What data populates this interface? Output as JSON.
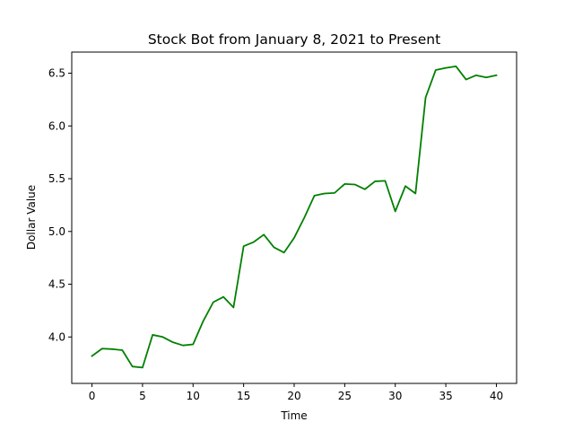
{
  "chart_data": {
    "type": "line",
    "title": "Stock Bot from January 8, 2021 to Present",
    "xlabel": "Time",
    "ylabel": "Dollar Value",
    "xlim": [
      -2,
      42
    ],
    "ylim": [
      3.56,
      6.7
    ],
    "xticks": [
      0,
      5,
      10,
      15,
      20,
      25,
      30,
      35,
      40
    ],
    "yticks": [
      4.0,
      4.5,
      5.0,
      5.5,
      6.0,
      6.5
    ],
    "ytick_labels": [
      "4.0",
      "4.5",
      "5.0",
      "5.5",
      "6.0",
      "6.5"
    ],
    "grid": false,
    "series": [
      {
        "color": "#008000",
        "x": [
          0,
          1,
          2,
          3,
          4,
          5,
          6,
          7,
          8,
          9,
          10,
          11,
          12,
          13,
          14,
          15,
          16,
          17,
          18,
          19,
          20,
          21,
          22,
          23,
          24,
          25,
          26,
          27,
          28,
          29,
          30,
          31,
          32,
          33,
          34,
          35,
          36,
          37,
          38,
          39,
          40
        ],
        "y": [
          3.82,
          3.89,
          3.885,
          3.875,
          3.72,
          3.71,
          4.02,
          4.0,
          3.95,
          3.92,
          3.93,
          4.15,
          4.33,
          4.38,
          4.28,
          4.86,
          4.9,
          4.97,
          4.85,
          4.8,
          4.94,
          5.13,
          5.34,
          5.36,
          5.365,
          5.45,
          5.445,
          5.4,
          5.475,
          5.48,
          5.19,
          5.43,
          5.36,
          6.27,
          6.53,
          6.55,
          6.565,
          6.44,
          6.48,
          6.46,
          6.48
        ]
      }
    ]
  }
}
